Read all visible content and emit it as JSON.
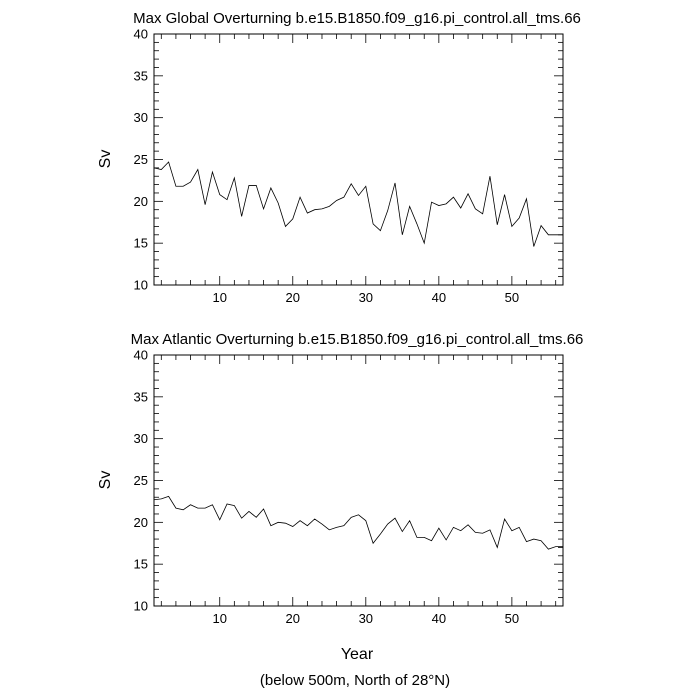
{
  "footnote": "(below 500m, North of 28°N)",
  "chart_data": [
    {
      "type": "line",
      "title": "Max Global Overturning b.e15.B1850.f09_g16.pi_control.all_tms.66",
      "xlabel": "",
      "ylabel": "Sv",
      "xlim": [
        1,
        57
      ],
      "ylim": [
        10,
        40
      ],
      "xticks": [
        "10",
        "20",
        "30",
        "40",
        "50"
      ],
      "yticks": [
        "10",
        "15",
        "20",
        "25",
        "30",
        "35",
        "40"
      ],
      "grid": false,
      "x": [
        1,
        2,
        3,
        4,
        5,
        6,
        7,
        8,
        9,
        10,
        11,
        12,
        13,
        14,
        15,
        16,
        17,
        18,
        19,
        20,
        21,
        22,
        23,
        24,
        25,
        26,
        27,
        28,
        29,
        30,
        31,
        32,
        33,
        34,
        35,
        36,
        37,
        38,
        39,
        40,
        41,
        42,
        43,
        44,
        45,
        46,
        47,
        48,
        49,
        50,
        51,
        52,
        53,
        54,
        55,
        56,
        57
      ],
      "series": [
        {
          "values": [
            24.0,
            23.8,
            24.7,
            21.8,
            21.8,
            22.3,
            23.8,
            19.6,
            23.5,
            20.8,
            20.2,
            22.8,
            18.2,
            21.9,
            21.9,
            19.1,
            21.6,
            19.8,
            17.0,
            17.9,
            20.5,
            18.6,
            19.0,
            19.1,
            19.4,
            20.1,
            20.5,
            22.1,
            20.7,
            21.8,
            17.3,
            16.5,
            18.9,
            22.2,
            16.0,
            19.4,
            17.3,
            15.0,
            19.9,
            19.5,
            19.7,
            20.5,
            19.2,
            20.9,
            19.1,
            18.5,
            23.0,
            17.2,
            20.8,
            17.0,
            18.0,
            20.3,
            14.6,
            17.1,
            16.0,
            16.0,
            16.0
          ]
        }
      ]
    },
    {
      "type": "line",
      "title": "Max Atlantic Overturning b.e15.B1850.f09_g16.pi_control.all_tms.66",
      "xlabel": "Year",
      "ylabel": "Sv",
      "xlim": [
        1,
        57
      ],
      "ylim": [
        10,
        40
      ],
      "xticks": [
        "10",
        "20",
        "30",
        "40",
        "50"
      ],
      "yticks": [
        "10",
        "15",
        "20",
        "25",
        "30",
        "35",
        "40"
      ],
      "grid": false,
      "x": [
        1,
        2,
        3,
        4,
        5,
        6,
        7,
        8,
        9,
        10,
        11,
        12,
        13,
        14,
        15,
        16,
        17,
        18,
        19,
        20,
        21,
        22,
        23,
        24,
        25,
        26,
        27,
        28,
        29,
        30,
        31,
        32,
        33,
        34,
        35,
        36,
        37,
        38,
        39,
        40,
        41,
        42,
        43,
        44,
        45,
        46,
        47,
        48,
        49,
        50,
        51,
        52,
        53,
        54,
        55,
        56,
        57
      ],
      "series": [
        {
          "values": [
            22.7,
            22.8,
            23.1,
            21.7,
            21.5,
            22.1,
            21.7,
            21.7,
            22.1,
            20.3,
            22.2,
            22.0,
            20.5,
            21.3,
            20.6,
            21.6,
            19.6,
            20.0,
            19.9,
            19.5,
            20.2,
            19.6,
            20.4,
            19.8,
            19.1,
            19.4,
            19.6,
            20.6,
            20.9,
            20.2,
            17.5,
            18.6,
            19.8,
            20.5,
            18.9,
            20.2,
            18.2,
            18.2,
            17.8,
            19.3,
            17.9,
            19.4,
            19.0,
            19.7,
            18.8,
            18.7,
            19.1,
            17.0,
            20.4,
            19.0,
            19.4,
            17.7,
            18.0,
            17.8,
            16.8,
            17.1,
            17.1
          ]
        }
      ]
    }
  ]
}
